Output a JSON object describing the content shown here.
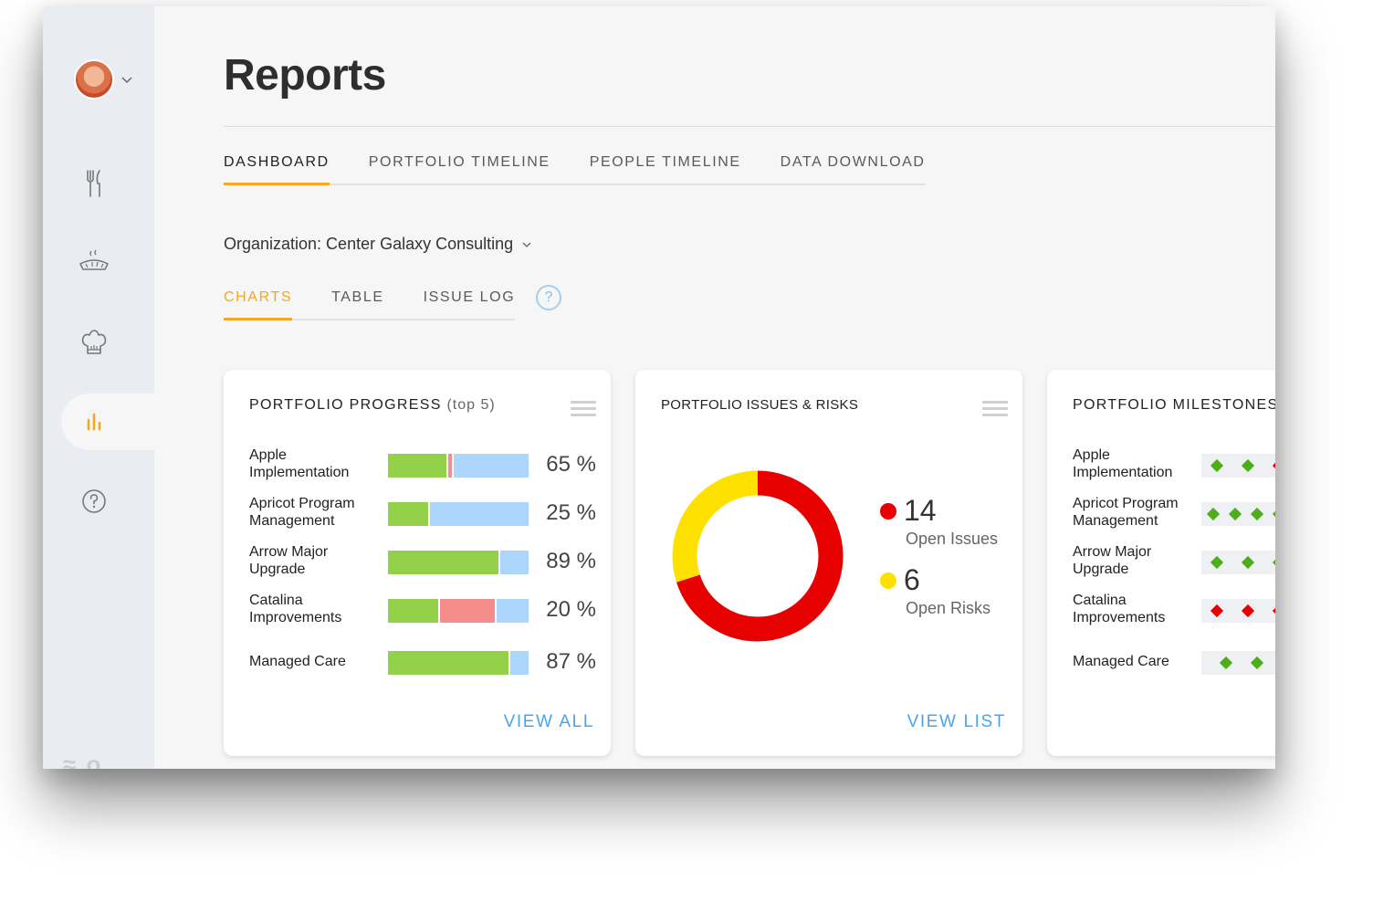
{
  "page": {
    "title": "Reports"
  },
  "main_tabs": [
    {
      "label": "DASHBOARD",
      "active": true
    },
    {
      "label": "PORTFOLIO TIMELINE",
      "active": false
    },
    {
      "label": "PEOPLE TIMELINE",
      "active": false
    },
    {
      "label": "DATA DOWNLOAD",
      "active": false
    }
  ],
  "organization": {
    "label": "Organization: Center Galaxy Consulting"
  },
  "sub_tabs": [
    {
      "label": "CHARTS",
      "active": true
    },
    {
      "label": "TABLE",
      "active": false
    },
    {
      "label": "ISSUE LOG",
      "active": false
    }
  ],
  "help": {
    "symbol": "?"
  },
  "sidebar": {
    "items": [
      "utensils-icon",
      "pie-icon",
      "chef-hat-icon",
      "bar-chart-icon",
      "help-icon"
    ],
    "active": "bar-chart-icon"
  },
  "colors": {
    "accent": "#f5a623",
    "link": "#4da3e8",
    "done": "#93d14b",
    "late": "#f58e8a",
    "remaining": "#acd6fb",
    "issue": "#e60000",
    "risk": "#ffe100"
  },
  "progress_card": {
    "title": "PORTFOLIO PROGRESS",
    "subtitle": "(top 5)",
    "link": "VIEW ALL",
    "rows": [
      {
        "name": "Apple Implementation",
        "pct_label": "65 %",
        "done": 0.43,
        "late": 0.04,
        "remaining": 0.53
      },
      {
        "name": "Apricot Program Management",
        "pct_label": "25 %",
        "done": 0.3,
        "late": 0.0,
        "remaining": 0.7
      },
      {
        "name": "Arrow Major Upgrade",
        "pct_label": "89 %",
        "done": 0.8,
        "late": 0.0,
        "remaining": 0.2
      },
      {
        "name": "Catalina Improvements",
        "pct_label": "20 %",
        "done": 0.37,
        "late": 0.4,
        "remaining": 0.23
      },
      {
        "name": "Managed Care",
        "pct_label": "87 %",
        "done": 0.87,
        "late": 0.0,
        "remaining": 0.13
      }
    ]
  },
  "issues_card": {
    "title": "PORTFOLIO ISSUES & RISKS",
    "link": "VIEW LIST",
    "issues": {
      "count": "14",
      "label": "Open Issues"
    },
    "risks": {
      "count": "6",
      "label": "Open Risks"
    }
  },
  "chart_data": {
    "type": "pie",
    "title": "PORTFOLIO ISSUES & RISKS",
    "categories": [
      "Open Issues",
      "Open Risks"
    ],
    "values": [
      14,
      6
    ],
    "colors": [
      "#e60000",
      "#ffe100"
    ],
    "donut": true
  },
  "milestones_card": {
    "title": "PORTFOLIO MILESTONES",
    "rows": [
      {
        "name": "Apple Implementation",
        "diamonds": [
          "green",
          "green",
          "red"
        ]
      },
      {
        "name": "Apricot Program Management",
        "diamonds": [
          "green",
          "green",
          "green",
          "green"
        ]
      },
      {
        "name": "Arrow Major Upgrade",
        "diamonds": [
          "green",
          "green",
          "green"
        ]
      },
      {
        "name": "Catalina Improvements",
        "diamonds": [
          "red",
          "red",
          "red"
        ]
      },
      {
        "name": "Managed Care",
        "diamonds": [
          "green",
          "green"
        ]
      }
    ]
  }
}
